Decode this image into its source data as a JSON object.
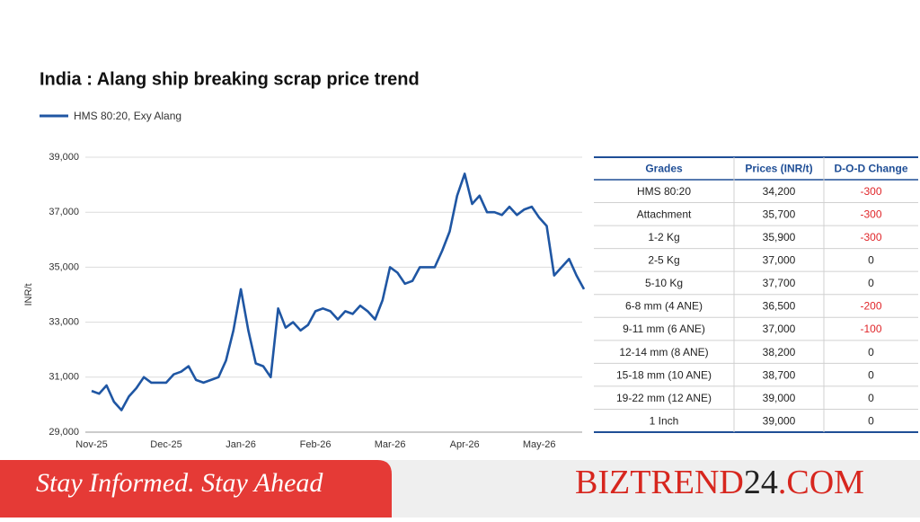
{
  "chart_data": {
    "type": "line",
    "title": "India : Alang ship breaking scrap price trend",
    "ylabel": "INR/t",
    "categories": [
      "Nov-25",
      null,
      null,
      null,
      null,
      null,
      null,
      null,
      null,
      null,
      "Dec-25",
      null,
      null,
      null,
      null,
      null,
      null,
      null,
      null,
      null,
      "Jan-26",
      null,
      null,
      null,
      null,
      null,
      null,
      null,
      null,
      null,
      "Feb-26",
      null,
      null,
      null,
      null,
      null,
      null,
      null,
      null,
      null,
      "Mar-26",
      null,
      null,
      null,
      null,
      null,
      null,
      null,
      null,
      null,
      "Apr-26",
      null,
      null,
      null,
      null,
      null,
      null,
      null,
      null,
      null,
      "May-26",
      null,
      null,
      null,
      null,
      null,
      null
    ],
    "series": [
      {
        "name": "HMS 80:20, Exy Alang",
        "color": "#1f56a3",
        "values": [
          30500,
          30400,
          30700,
          30100,
          29800,
          30300,
          30600,
          31000,
          30800,
          30800,
          30800,
          31100,
          31200,
          31400,
          30900,
          30800,
          30900,
          31000,
          31600,
          32700,
          34200,
          32700,
          31500,
          31400,
          31000,
          33500,
          32800,
          33000,
          32700,
          32900,
          33400,
          33500,
          33400,
          33100,
          33400,
          33300,
          33600,
          33400,
          33100,
          33800,
          35000,
          34800,
          34400,
          34500,
          35000,
          35000,
          35000,
          35600,
          36300,
          37600,
          38400,
          37300,
          37600,
          37000,
          37000,
          36900,
          37200,
          36900,
          37100,
          37200,
          36800,
          36500,
          34700,
          35000,
          35300,
          34700,
          34200
        ]
      }
    ],
    "ylim": [
      29000,
      39000
    ],
    "yticks": [
      {
        "value": 29000,
        "label": "29,000"
      },
      {
        "value": 31000,
        "label": "31,000"
      },
      {
        "value": 33000,
        "label": "33,000"
      },
      {
        "value": 35000,
        "label": "35,000"
      },
      {
        "value": 37000,
        "label": "37,000"
      },
      {
        "value": 39000,
        "label": "39,000"
      }
    ],
    "grid": true,
    "legend": "top-left"
  },
  "table": {
    "header": [
      "Grades",
      "Prices (INR/t)",
      "D-O-D Change"
    ],
    "rows": [
      [
        "HMS 80:20",
        "34,200",
        "-300"
      ],
      [
        "Attachment",
        "35,700",
        "-300"
      ],
      [
        "1-2 Kg",
        "35,900",
        "-300"
      ],
      [
        "2-5 Kg",
        "37,000",
        "0"
      ],
      [
        "5-10 Kg",
        "37,700",
        "0"
      ],
      [
        "6-8 mm (4 ANE)",
        "36,500",
        "-200"
      ],
      [
        "9-11 mm (6 ANE)",
        "37,000",
        "-100"
      ],
      [
        "12-14 mm (8 ANE)",
        "38,200",
        "0"
      ],
      [
        "15-18 mm (10 ANE)",
        "38,700",
        "0"
      ],
      [
        "19-22 mm (12 ANE)",
        "39,000",
        "0"
      ],
      [
        "1 Inch",
        "39,000",
        "0"
      ]
    ]
  },
  "banner": {
    "tagline": "Stay Informed. Stay Ahead",
    "logo": [
      "BIZTREND",
      "24",
      ".COM"
    ]
  }
}
